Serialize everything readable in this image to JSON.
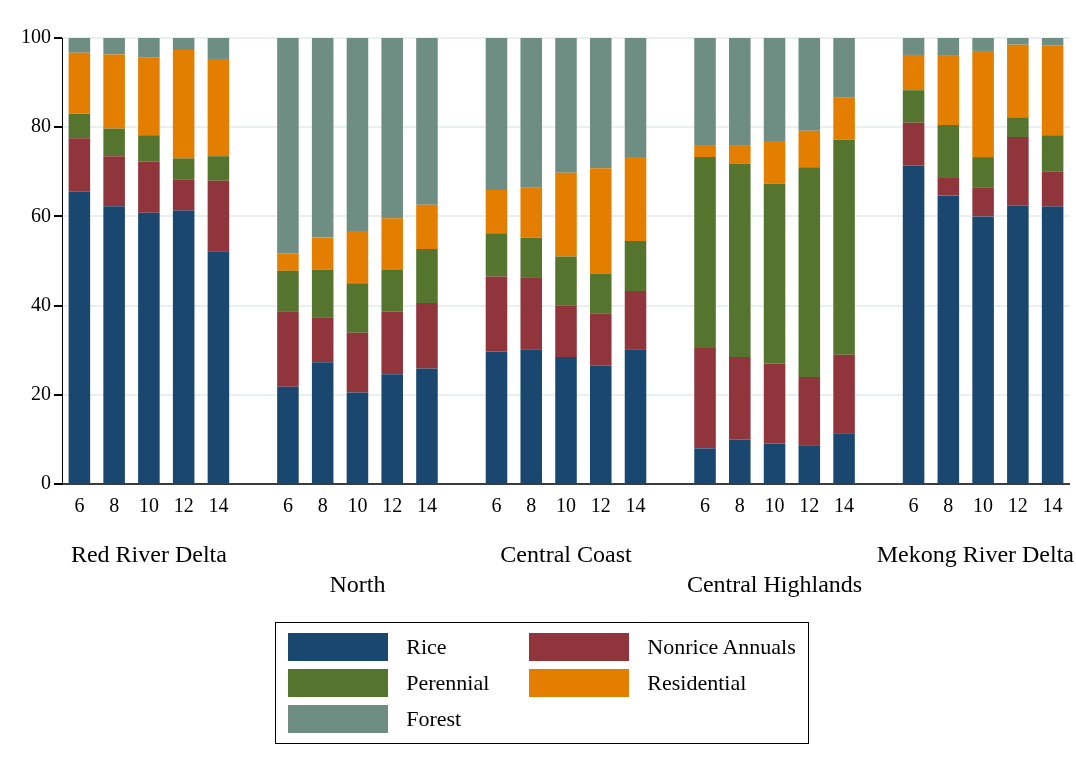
{
  "chart_data": {
    "type": "bar",
    "stacked": true,
    "categories": [
      "6",
      "8",
      "10",
      "12",
      "14",
      null,
      "6",
      "8",
      "10",
      "12",
      "14",
      null,
      "6",
      "8",
      "10",
      "12",
      "14",
      null,
      "6",
      "8",
      "10",
      "12",
      "14",
      null,
      "6",
      "8",
      "10",
      "12",
      "14"
    ],
    "series": [
      {
        "name": "Rice",
        "color": "#1a476f",
        "values": [
          65.5,
          62.3,
          60.8,
          61.3,
          52.2,
          null,
          21.8,
          27.3,
          20.5,
          24.6,
          25.9,
          null,
          29.7,
          30.2,
          28.5,
          26.5,
          30.2,
          null,
          8,
          10,
          9,
          8.7,
          11.4,
          null,
          71.4,
          64.7,
          60,
          62.4,
          62.2
        ]
      },
      {
        "name": "Nonrice Annuals",
        "color": "#90353b",
        "values": [
          12,
          11.2,
          11.5,
          6.9,
          15.8,
          null,
          16.8,
          10.1,
          13.4,
          14,
          14.7,
          null,
          16.8,
          16,
          11.6,
          11.8,
          13.1,
          null,
          22.5,
          18.5,
          18,
          15.3,
          17.6,
          null,
          9.6,
          4.1,
          6.4,
          15.4,
          7.8
        ]
      },
      {
        "name": "Perennial",
        "color": "#55752f",
        "values": [
          5.5,
          6.2,
          5.9,
          4.8,
          5.5,
          null,
          9.2,
          10.6,
          11.1,
          9.4,
          12.1,
          null,
          9.7,
          9,
          10.9,
          8.9,
          11.2,
          null,
          42.8,
          43.3,
          40.3,
          47,
          48.2,
          null,
          7.3,
          11.7,
          6.9,
          4.4,
          8.2
        ]
      },
      {
        "name": "Residential",
        "color": "#e37e00",
        "values": [
          13.7,
          16.6,
          17.4,
          24.3,
          21.8,
          null,
          3.9,
          7.3,
          11.7,
          11.6,
          9.9,
          null,
          9.7,
          11.2,
          18.8,
          23.6,
          18.8,
          null,
          2.7,
          4.2,
          9.6,
          8.2,
          9.4,
          null,
          7.9,
          15.5,
          23.8,
          16.3,
          20.1
        ]
      },
      {
        "name": "Forest",
        "color": "#6e8e84",
        "values": [
          3.3,
          3.7,
          4.4,
          2.7,
          4.7,
          null,
          48.3,
          44.7,
          43.3,
          40.4,
          37.4,
          null,
          34.1,
          33.6,
          30.2,
          29.2,
          26.7,
          null,
          24,
          24,
          23.1,
          20.8,
          13.4,
          null,
          3.8,
          4,
          2.9,
          1.5,
          1.7
        ]
      }
    ],
    "ylim": [
      0,
      100
    ],
    "yticks": [
      0,
      20,
      40,
      60,
      80,
      100
    ],
    "grid": "y",
    "legend": "bottom",
    "annotations": [
      "Red River Delta",
      "North",
      "Central Coast",
      "Central Highlands",
      "Mekong River Delta"
    ]
  }
}
